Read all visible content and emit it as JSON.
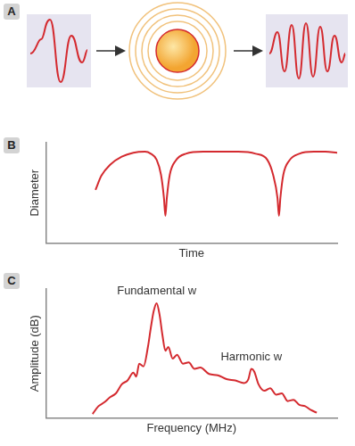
{
  "panel_a": {
    "label": "A"
  },
  "chart_data": [
    {
      "label": "B",
      "type": "line",
      "x_label": "Time",
      "y_label": "Diameter",
      "x": [
        1.7,
        1.9,
        2.2,
        2.6,
        3.0,
        3.4,
        3.6,
        3.8,
        3.95,
        4.05,
        4.1,
        4.15,
        4.25,
        4.45,
        4.8,
        5.4,
        6.0,
        6.6,
        7.2,
        7.6,
        7.8,
        7.95,
        8.0,
        8.05,
        8.15,
        8.35,
        8.7,
        9.2,
        9.6,
        10.0
      ],
      "values": [
        5.3,
        6.7,
        7.8,
        8.6,
        9.0,
        9.1,
        8.9,
        8.3,
        6.8,
        4.5,
        2.7,
        4.5,
        6.8,
        8.2,
        8.9,
        9.1,
        9.1,
        9.1,
        8.9,
        8.3,
        6.8,
        4.5,
        2.7,
        4.5,
        6.8,
        8.2,
        8.9,
        9.1,
        9.1,
        9.0
      ],
      "color": "#d42a2f",
      "xlim": [
        0,
        10
      ],
      "ylim": [
        0,
        10
      ],
      "tick_labels": false,
      "grid": false
    },
    {
      "label": "C",
      "type": "line",
      "x_label": "Frequency (MHz)",
      "y_label": "Amplitude (dB)",
      "x": [
        1.6,
        1.8,
        2.0,
        2.2,
        2.4,
        2.6,
        2.8,
        3.0,
        3.1,
        3.2,
        3.35,
        3.5,
        3.6,
        3.7,
        3.8,
        3.9,
        4.0,
        4.1,
        4.2,
        4.35,
        4.5,
        4.7,
        4.9,
        5.1,
        5.3,
        5.6,
        5.9,
        6.2,
        6.5,
        6.8,
        6.95,
        7.05,
        7.15,
        7.3,
        7.5,
        7.7,
        7.9,
        8.1,
        8.3,
        8.5,
        8.7,
        8.9,
        9.1,
        9.3
      ],
      "values": [
        0.3,
        0.9,
        1.2,
        1.6,
        1.9,
        2.6,
        2.9,
        3.5,
        3.2,
        4.2,
        4.0,
        5.5,
        7.0,
        8.3,
        8.9,
        8.0,
        6.4,
        5.2,
        5.5,
        4.6,
        4.9,
        4.2,
        4.3,
        3.8,
        3.9,
        3.4,
        3.3,
        3.0,
        2.9,
        2.7,
        3.0,
        3.8,
        3.6,
        2.6,
        2.1,
        2.3,
        1.8,
        1.9,
        1.3,
        1.4,
        1.0,
        0.9,
        0.6,
        0.4
      ],
      "color": "#d42a2f",
      "xlim": [
        0,
        10
      ],
      "ylim": [
        0,
        10
      ],
      "tick_labels": false,
      "grid": false,
      "annotations": [
        {
          "text": "Fundamental w",
          "x": 3.8,
          "y": 8.9
        },
        {
          "text": "Harmonic w",
          "x": 7.05,
          "y": 3.8
        }
      ]
    }
  ]
}
